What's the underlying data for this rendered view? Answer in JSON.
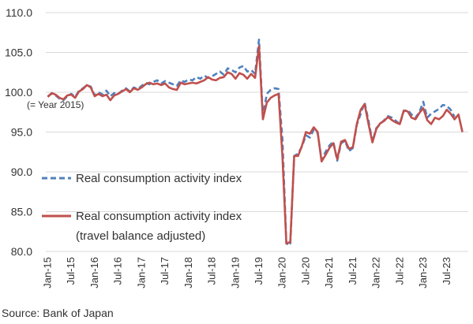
{
  "chart_data": {
    "type": "line",
    "title": "",
    "xlabel": "",
    "ylabel": "",
    "ylim": [
      80,
      110
    ],
    "yticks": [
      "80.0",
      "85.0",
      "90.0",
      "95.0",
      "100.0",
      "105.0",
      "110.0"
    ],
    "ytick_values": [
      80,
      85,
      90,
      95,
      100,
      105,
      110
    ],
    "grid": "horizontal",
    "legend_position": "lower-left",
    "annotation": "(= Year 2015)",
    "source": "Source: Bank of Japan",
    "x_start": "2015-01",
    "x_end": "2023-12",
    "xticks": [
      "Jan-15",
      "Jul-15",
      "Jan-16",
      "Jul-16",
      "Jan-17",
      "Jul-17",
      "Jan-18",
      "Jul-18",
      "Jan-19",
      "Jul-19",
      "Jan-20",
      "Jul-20",
      "Jan-21",
      "Jul-21",
      "Jan-22",
      "Jul-22",
      "Jan-23",
      "Jul-23"
    ],
    "legend": [
      {
        "label": "Real consumption activity index",
        "label2": "",
        "series": 0
      },
      {
        "label": "Real consumption activity index",
        "label2": "(travel balance adjusted)",
        "series": 1
      }
    ],
    "series": [
      {
        "name": "Real consumption activity index",
        "color": "#4f81bd",
        "style": "dashed",
        "values": [
          99.5,
          99.8,
          99.6,
          99.2,
          99.0,
          99.5,
          99.8,
          99.4,
          100.2,
          100.5,
          100.9,
          100.7,
          99.6,
          100.0,
          99.7,
          100.2,
          99.5,
          99.9,
          99.8,
          100.2,
          100.5,
          100.1,
          100.6,
          100.4,
          100.8,
          101.2,
          101.0,
          101.3,
          101.5,
          101.1,
          101.4,
          101.2,
          101.0,
          100.8,
          101.5,
          101.3,
          101.6,
          101.5,
          101.9,
          101.7,
          102.1,
          101.8,
          102.0,
          102.3,
          102.6,
          102.2,
          103.0,
          102.8,
          102.5,
          103.1,
          103.3,
          102.6,
          102.8,
          102.3,
          106.6,
          97.0,
          99.8,
          100.3,
          100.5,
          100.4,
          94.0,
          81.0,
          80.8,
          92.0,
          92.3,
          93.2,
          94.6,
          94.3,
          95.3,
          94.9,
          91.5,
          92.5,
          93.3,
          93.8,
          91.4,
          93.6,
          93.9,
          92.6,
          93.0,
          95.9,
          97.3,
          98.7,
          96.4,
          93.8,
          95.5,
          96.0,
          96.5,
          97.0,
          96.8,
          96.4,
          96.0,
          97.6,
          97.8,
          97.2,
          96.8,
          97.5,
          98.8,
          96.8,
          97.3,
          97.6,
          97.9,
          98.4,
          98.3,
          97.8,
          96.9
        ]
      },
      {
        "name": "Real consumption activity index (travel balance adjusted)",
        "color": "#c0504d",
        "style": "solid",
        "values": [
          99.4,
          99.9,
          99.7,
          99.3,
          99.1,
          99.6,
          99.7,
          99.3,
          100.1,
          100.4,
          100.9,
          100.6,
          99.5,
          99.8,
          99.5,
          99.7,
          99.0,
          99.6,
          99.8,
          100.1,
          100.4,
          100.0,
          100.5,
          100.3,
          100.6,
          101.0,
          101.2,
          101.0,
          101.1,
          100.9,
          101.1,
          100.6,
          100.4,
          100.3,
          101.2,
          101.0,
          101.1,
          101.2,
          101.1,
          101.3,
          101.5,
          101.9,
          101.6,
          101.5,
          101.8,
          101.9,
          102.5,
          102.3,
          101.7,
          102.4,
          102.2,
          101.7,
          102.3,
          101.8,
          105.8,
          96.6,
          98.7,
          99.3,
          99.6,
          99.8,
          91.9,
          81.0,
          81.2,
          92.0,
          92.0,
          93.3,
          95.0,
          94.8,
          95.6,
          95.0,
          91.3,
          92.1,
          93.0,
          93.6,
          91.6,
          93.8,
          94.0,
          92.9,
          93.1,
          96.0,
          97.8,
          98.5,
          96.0,
          93.7,
          95.4,
          96.1,
          96.4,
          96.9,
          96.5,
          96.2,
          96.0,
          97.7,
          97.6,
          96.8,
          96.6,
          97.4,
          98.0,
          96.5,
          96.0,
          96.8,
          96.6,
          97.0,
          97.8,
          97.3,
          96.6,
          97.2,
          95.0
        ]
      }
    ]
  }
}
